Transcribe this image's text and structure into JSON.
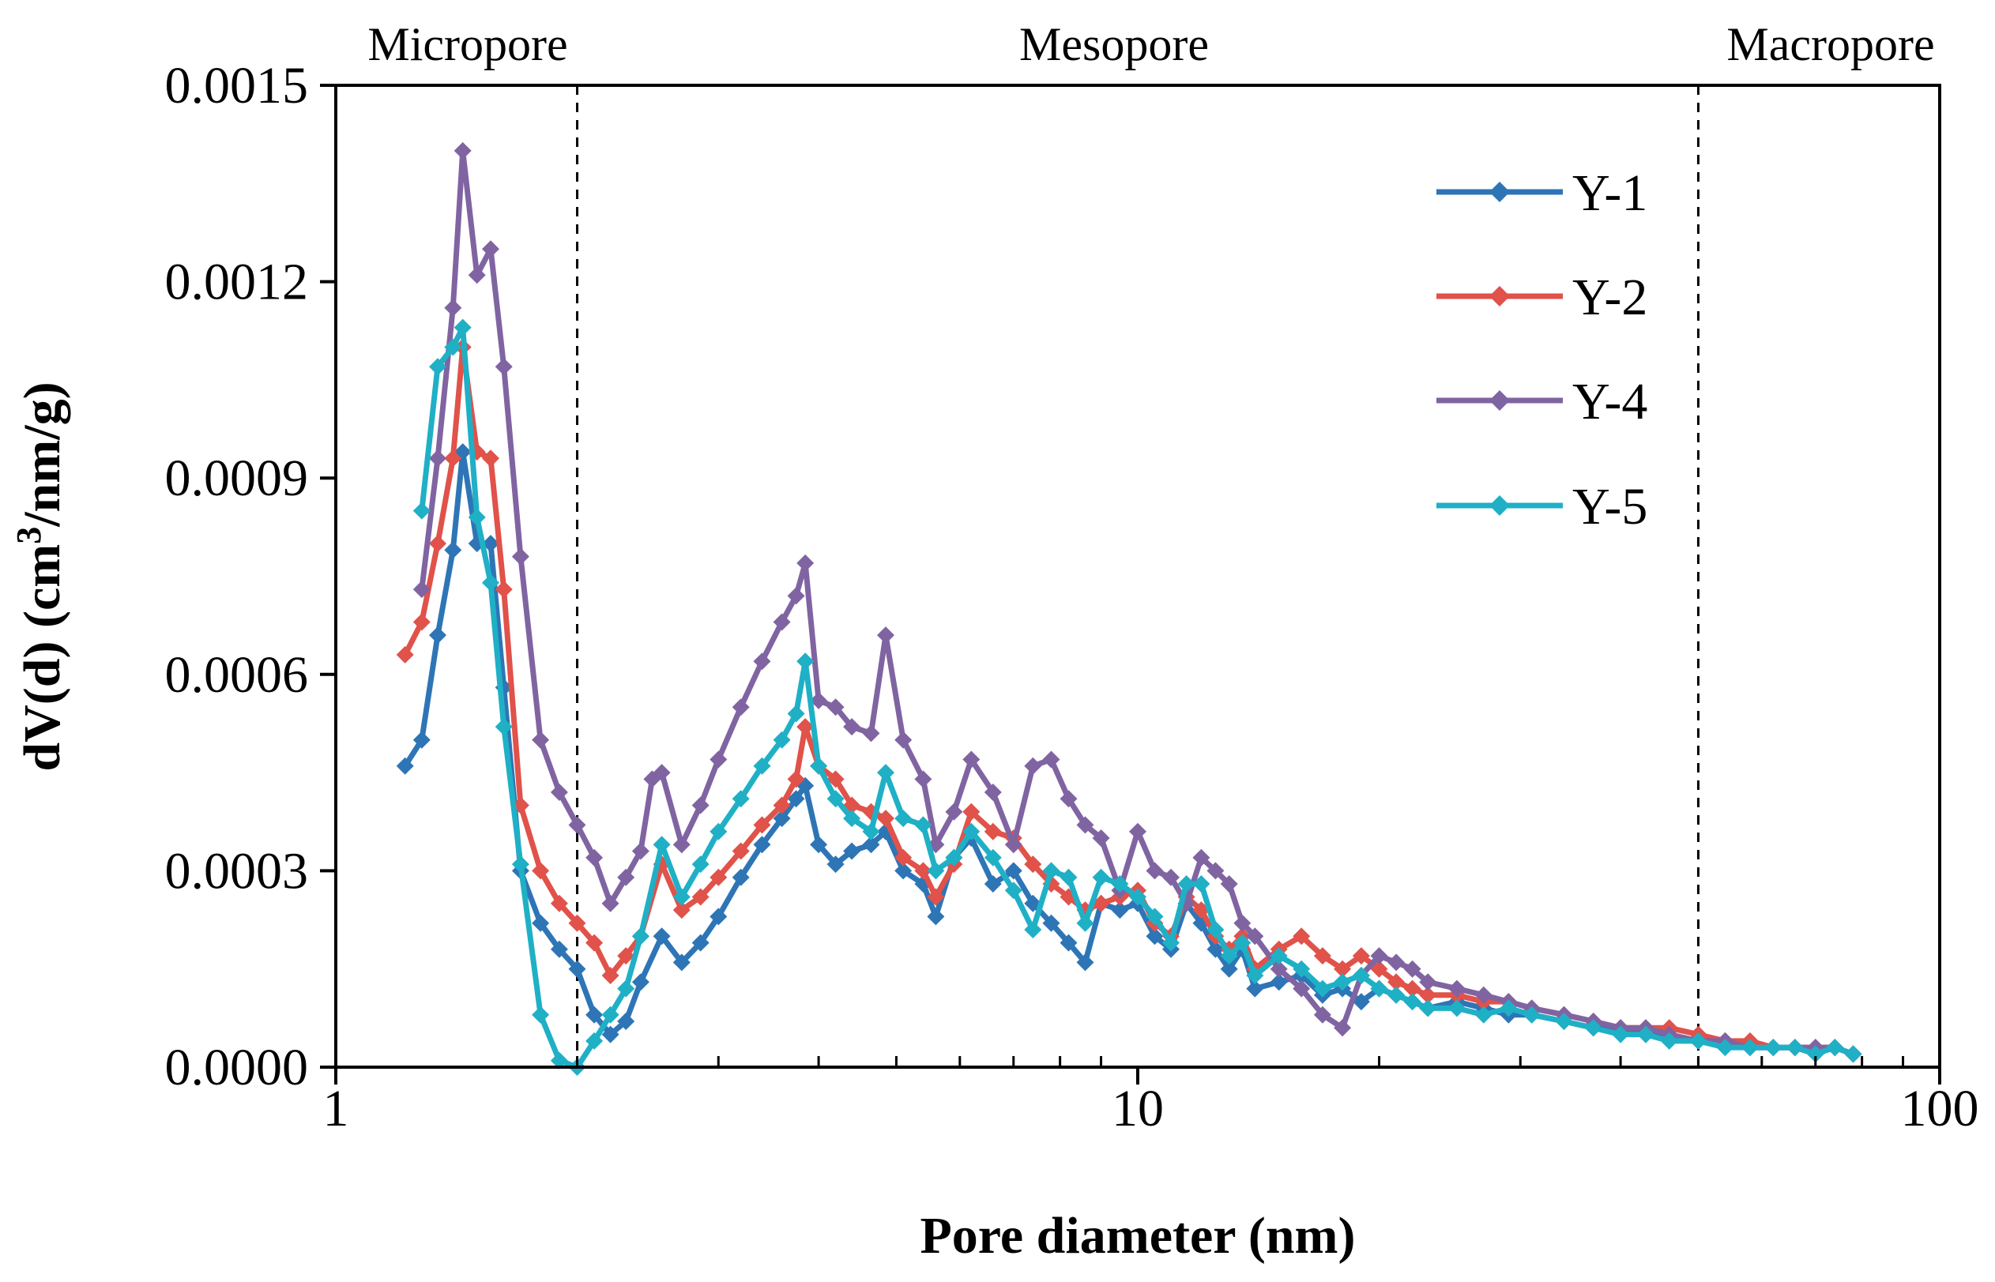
{
  "chart_data": {
    "type": "line",
    "x_scale": "log",
    "xlabel": "Pore diameter (nm)",
    "ylabel_parts": {
      "prefix": "dV(d) (cm",
      "superscript": "3",
      "suffix": "/nm/g)"
    },
    "xlim": [
      1,
      100
    ],
    "ylim": [
      0,
      0.0015
    ],
    "x_tick_values": [
      1,
      10,
      100
    ],
    "x_tick_labels": [
      "1",
      "10",
      "100"
    ],
    "y_tick_values": [
      0,
      0.0003,
      0.0006,
      0.0009,
      0.0012,
      0.0015
    ],
    "y_tick_labels": [
      "0.0000",
      "0.0003",
      "0.0006",
      "0.0009",
      "0.0012",
      "0.0015"
    ],
    "boundaries": [
      2,
      50
    ],
    "regions": [
      {
        "name": "micropore",
        "label": "Micropore",
        "from": 1,
        "to": 2
      },
      {
        "name": "mesopore",
        "label": "Mesopore",
        "from": 2,
        "to": 50
      },
      {
        "name": "macropore",
        "label": "Macropore",
        "from": 50,
        "to": 100
      }
    ],
    "legend_position": "top-right",
    "series": [
      {
        "name": "Y-1",
        "color": "#2e75b6",
        "x": [
          1.22,
          1.28,
          1.34,
          1.4,
          1.44,
          1.5,
          1.56,
          1.62,
          1.7,
          1.8,
          1.9,
          2.0,
          2.1,
          2.2,
          2.3,
          2.4,
          2.55,
          2.7,
          2.85,
          3.0,
          3.2,
          3.4,
          3.6,
          3.75,
          3.85,
          4.0,
          4.2,
          4.4,
          4.65,
          4.85,
          5.1,
          5.4,
          5.6,
          5.9,
          6.2,
          6.6,
          7.0,
          7.4,
          7.8,
          8.2,
          8.6,
          9.0,
          9.5,
          10.0,
          10.5,
          11.0,
          11.5,
          12.0,
          12.5,
          13.0,
          13.5,
          14.0,
          15.0,
          16.0,
          17.0,
          18.0,
          19.0,
          20.0,
          21.0,
          22.0,
          23.0,
          25.0,
          27.0,
          29.0,
          31.0,
          34.0,
          37.0,
          40.0,
          43.0,
          46.0,
          50.0,
          54.0,
          58.0,
          62.0,
          66.0,
          70.0,
          74.0,
          78.0
        ],
        "values": [
          0.00046,
          0.0005,
          0.00066,
          0.00079,
          0.00094,
          0.0008,
          0.0008,
          0.00058,
          0.0003,
          0.00022,
          0.00018,
          0.00015,
          8e-05,
          5e-05,
          7e-05,
          0.00013,
          0.0002,
          0.00016,
          0.00019,
          0.00023,
          0.00029,
          0.00034,
          0.00038,
          0.00041,
          0.00043,
          0.00034,
          0.00031,
          0.00033,
          0.00034,
          0.00036,
          0.0003,
          0.00028,
          0.00023,
          0.00032,
          0.00035,
          0.00028,
          0.0003,
          0.00025,
          0.00022,
          0.00019,
          0.00016,
          0.00025,
          0.00024,
          0.00025,
          0.0002,
          0.00018,
          0.00025,
          0.00022,
          0.00018,
          0.00015,
          0.00018,
          0.00012,
          0.00013,
          0.00014,
          0.00011,
          0.00012,
          0.0001,
          0.00012,
          0.00011,
          0.0001,
          9e-05,
          0.0001,
          9e-05,
          8e-05,
          8e-05,
          7e-05,
          6e-05,
          6e-05,
          5e-05,
          5e-05,
          4e-05,
          4e-05,
          3e-05,
          3e-05,
          3e-05,
          3e-05,
          3e-05,
          2e-05
        ]
      },
      {
        "name": "Y-2",
        "color": "#e0524a",
        "x": [
          1.22,
          1.28,
          1.34,
          1.4,
          1.44,
          1.5,
          1.56,
          1.62,
          1.7,
          1.8,
          1.9,
          2.0,
          2.1,
          2.2,
          2.3,
          2.4,
          2.55,
          2.7,
          2.85,
          3.0,
          3.2,
          3.4,
          3.6,
          3.75,
          3.85,
          4.0,
          4.2,
          4.4,
          4.65,
          4.85,
          5.1,
          5.4,
          5.6,
          5.9,
          6.2,
          6.6,
          7.0,
          7.4,
          7.8,
          8.2,
          8.6,
          9.0,
          9.5,
          10.0,
          10.5,
          11.0,
          11.5,
          12.0,
          12.5,
          13.0,
          13.5,
          14.0,
          15.0,
          16.0,
          17.0,
          18.0,
          19.0,
          20.0,
          21.0,
          22.0,
          23.0,
          25.0,
          27.0,
          29.0,
          31.0,
          34.0,
          37.0,
          40.0,
          43.0,
          46.0,
          50.0,
          54.0,
          58.0,
          62.0,
          66.0,
          70.0,
          74.0,
          78.0
        ],
        "values": [
          0.00063,
          0.00068,
          0.0008,
          0.00093,
          0.0011,
          0.00094,
          0.00093,
          0.00073,
          0.0004,
          0.0003,
          0.00025,
          0.00022,
          0.00019,
          0.00014,
          0.00017,
          0.0002,
          0.00031,
          0.00024,
          0.00026,
          0.00029,
          0.00033,
          0.00037,
          0.0004,
          0.00044,
          0.00052,
          0.00046,
          0.00044,
          0.0004,
          0.00039,
          0.00038,
          0.00032,
          0.0003,
          0.00026,
          0.00031,
          0.00039,
          0.00036,
          0.00035,
          0.00031,
          0.00028,
          0.00026,
          0.00024,
          0.00025,
          0.00026,
          0.00027,
          0.00022,
          0.0002,
          0.00026,
          0.00024,
          0.0002,
          0.00018,
          0.0002,
          0.00015,
          0.00018,
          0.0002,
          0.00017,
          0.00015,
          0.00017,
          0.00015,
          0.00013,
          0.00012,
          0.00011,
          0.00011,
          0.0001,
          0.0001,
          9e-05,
          8e-05,
          7e-05,
          6e-05,
          6e-05,
          6e-05,
          5e-05,
          4e-05,
          4e-05,
          3e-05,
          3e-05,
          3e-05,
          3e-05,
          2e-05
        ]
      },
      {
        "name": "Y-4",
        "color": "#8064a2",
        "x": [
          1.28,
          1.34,
          1.4,
          1.44,
          1.5,
          1.56,
          1.62,
          1.7,
          1.8,
          1.9,
          2.0,
          2.1,
          2.2,
          2.3,
          2.4,
          2.48,
          2.55,
          2.7,
          2.85,
          3.0,
          3.2,
          3.4,
          3.6,
          3.75,
          3.85,
          4.0,
          4.2,
          4.4,
          4.65,
          4.85,
          5.1,
          5.4,
          5.6,
          5.9,
          6.2,
          6.6,
          7.0,
          7.4,
          7.8,
          8.2,
          8.6,
          9.0,
          9.5,
          10.0,
          10.5,
          11.0,
          11.5,
          12.0,
          12.5,
          13.0,
          13.5,
          14.0,
          15.0,
          16.0,
          17.0,
          18.0,
          19.0,
          20.0,
          21.0,
          22.0,
          23.0,
          25.0,
          27.0,
          29.0,
          31.0,
          34.0,
          37.0,
          40.0,
          43.0,
          46.0,
          50.0,
          54.0,
          58.0,
          62.0,
          66.0,
          70.0,
          74.0,
          78.0
        ],
        "values": [
          0.00073,
          0.00093,
          0.00116,
          0.0014,
          0.00121,
          0.00125,
          0.00107,
          0.00078,
          0.0005,
          0.00042,
          0.00037,
          0.00032,
          0.00025,
          0.00029,
          0.00033,
          0.00044,
          0.00045,
          0.00034,
          0.0004,
          0.00047,
          0.00055,
          0.00062,
          0.00068,
          0.00072,
          0.00077,
          0.00056,
          0.00055,
          0.00052,
          0.00051,
          0.00066,
          0.0005,
          0.00044,
          0.00034,
          0.00039,
          0.00047,
          0.00042,
          0.00034,
          0.00046,
          0.00047,
          0.00041,
          0.00037,
          0.00035,
          0.00027,
          0.00036,
          0.0003,
          0.00029,
          0.00025,
          0.00032,
          0.0003,
          0.00028,
          0.00022,
          0.0002,
          0.00015,
          0.00012,
          8e-05,
          6e-05,
          0.00014,
          0.00017,
          0.00016,
          0.00015,
          0.00013,
          0.00012,
          0.00011,
          0.0001,
          9e-05,
          8e-05,
          7e-05,
          6e-05,
          6e-05,
          5e-05,
          4e-05,
          4e-05,
          3e-05,
          3e-05,
          3e-05,
          3e-05,
          3e-05,
          2e-05
        ]
      },
      {
        "name": "Y-5",
        "color": "#1fb0c6",
        "x": [
          1.28,
          1.34,
          1.4,
          1.44,
          1.5,
          1.56,
          1.62,
          1.7,
          1.8,
          1.9,
          2.0,
          2.1,
          2.2,
          2.3,
          2.4,
          2.55,
          2.7,
          2.85,
          3.0,
          3.2,
          3.4,
          3.6,
          3.75,
          3.85,
          4.0,
          4.2,
          4.4,
          4.65,
          4.85,
          5.1,
          5.4,
          5.6,
          5.9,
          6.2,
          6.6,
          7.0,
          7.4,
          7.8,
          8.2,
          8.6,
          9.0,
          9.5,
          10.0,
          10.5,
          11.0,
          11.5,
          12.0,
          12.5,
          13.0,
          13.5,
          14.0,
          15.0,
          16.0,
          17.0,
          18.0,
          19.0,
          20.0,
          21.0,
          22.0,
          23.0,
          25.0,
          27.0,
          29.0,
          31.0,
          34.0,
          37.0,
          40.0,
          43.0,
          46.0,
          50.0,
          54.0,
          58.0,
          62.0,
          66.0,
          70.0,
          74.0,
          78.0
        ],
        "values": [
          0.00085,
          0.00107,
          0.0011,
          0.00113,
          0.00084,
          0.00074,
          0.00052,
          0.00031,
          8e-05,
          1e-05,
          0.0,
          4e-05,
          8e-05,
          0.00012,
          0.0002,
          0.00034,
          0.00026,
          0.00031,
          0.00036,
          0.00041,
          0.00046,
          0.0005,
          0.00054,
          0.00062,
          0.00046,
          0.00041,
          0.00038,
          0.00036,
          0.00045,
          0.00038,
          0.00037,
          0.0003,
          0.00032,
          0.00036,
          0.00032,
          0.00027,
          0.00021,
          0.0003,
          0.00029,
          0.00022,
          0.00029,
          0.00028,
          0.00026,
          0.00023,
          0.00019,
          0.00028,
          0.00028,
          0.00021,
          0.00017,
          0.00019,
          0.00014,
          0.00017,
          0.00015,
          0.00012,
          0.00013,
          0.00014,
          0.00012,
          0.00011,
          0.0001,
          9e-05,
          9e-05,
          8e-05,
          9e-05,
          8e-05,
          7e-05,
          6e-05,
          5e-05,
          5e-05,
          4e-05,
          4e-05,
          3e-05,
          3e-05,
          3e-05,
          3e-05,
          2e-05,
          3e-05,
          2e-05
        ]
      }
    ]
  }
}
